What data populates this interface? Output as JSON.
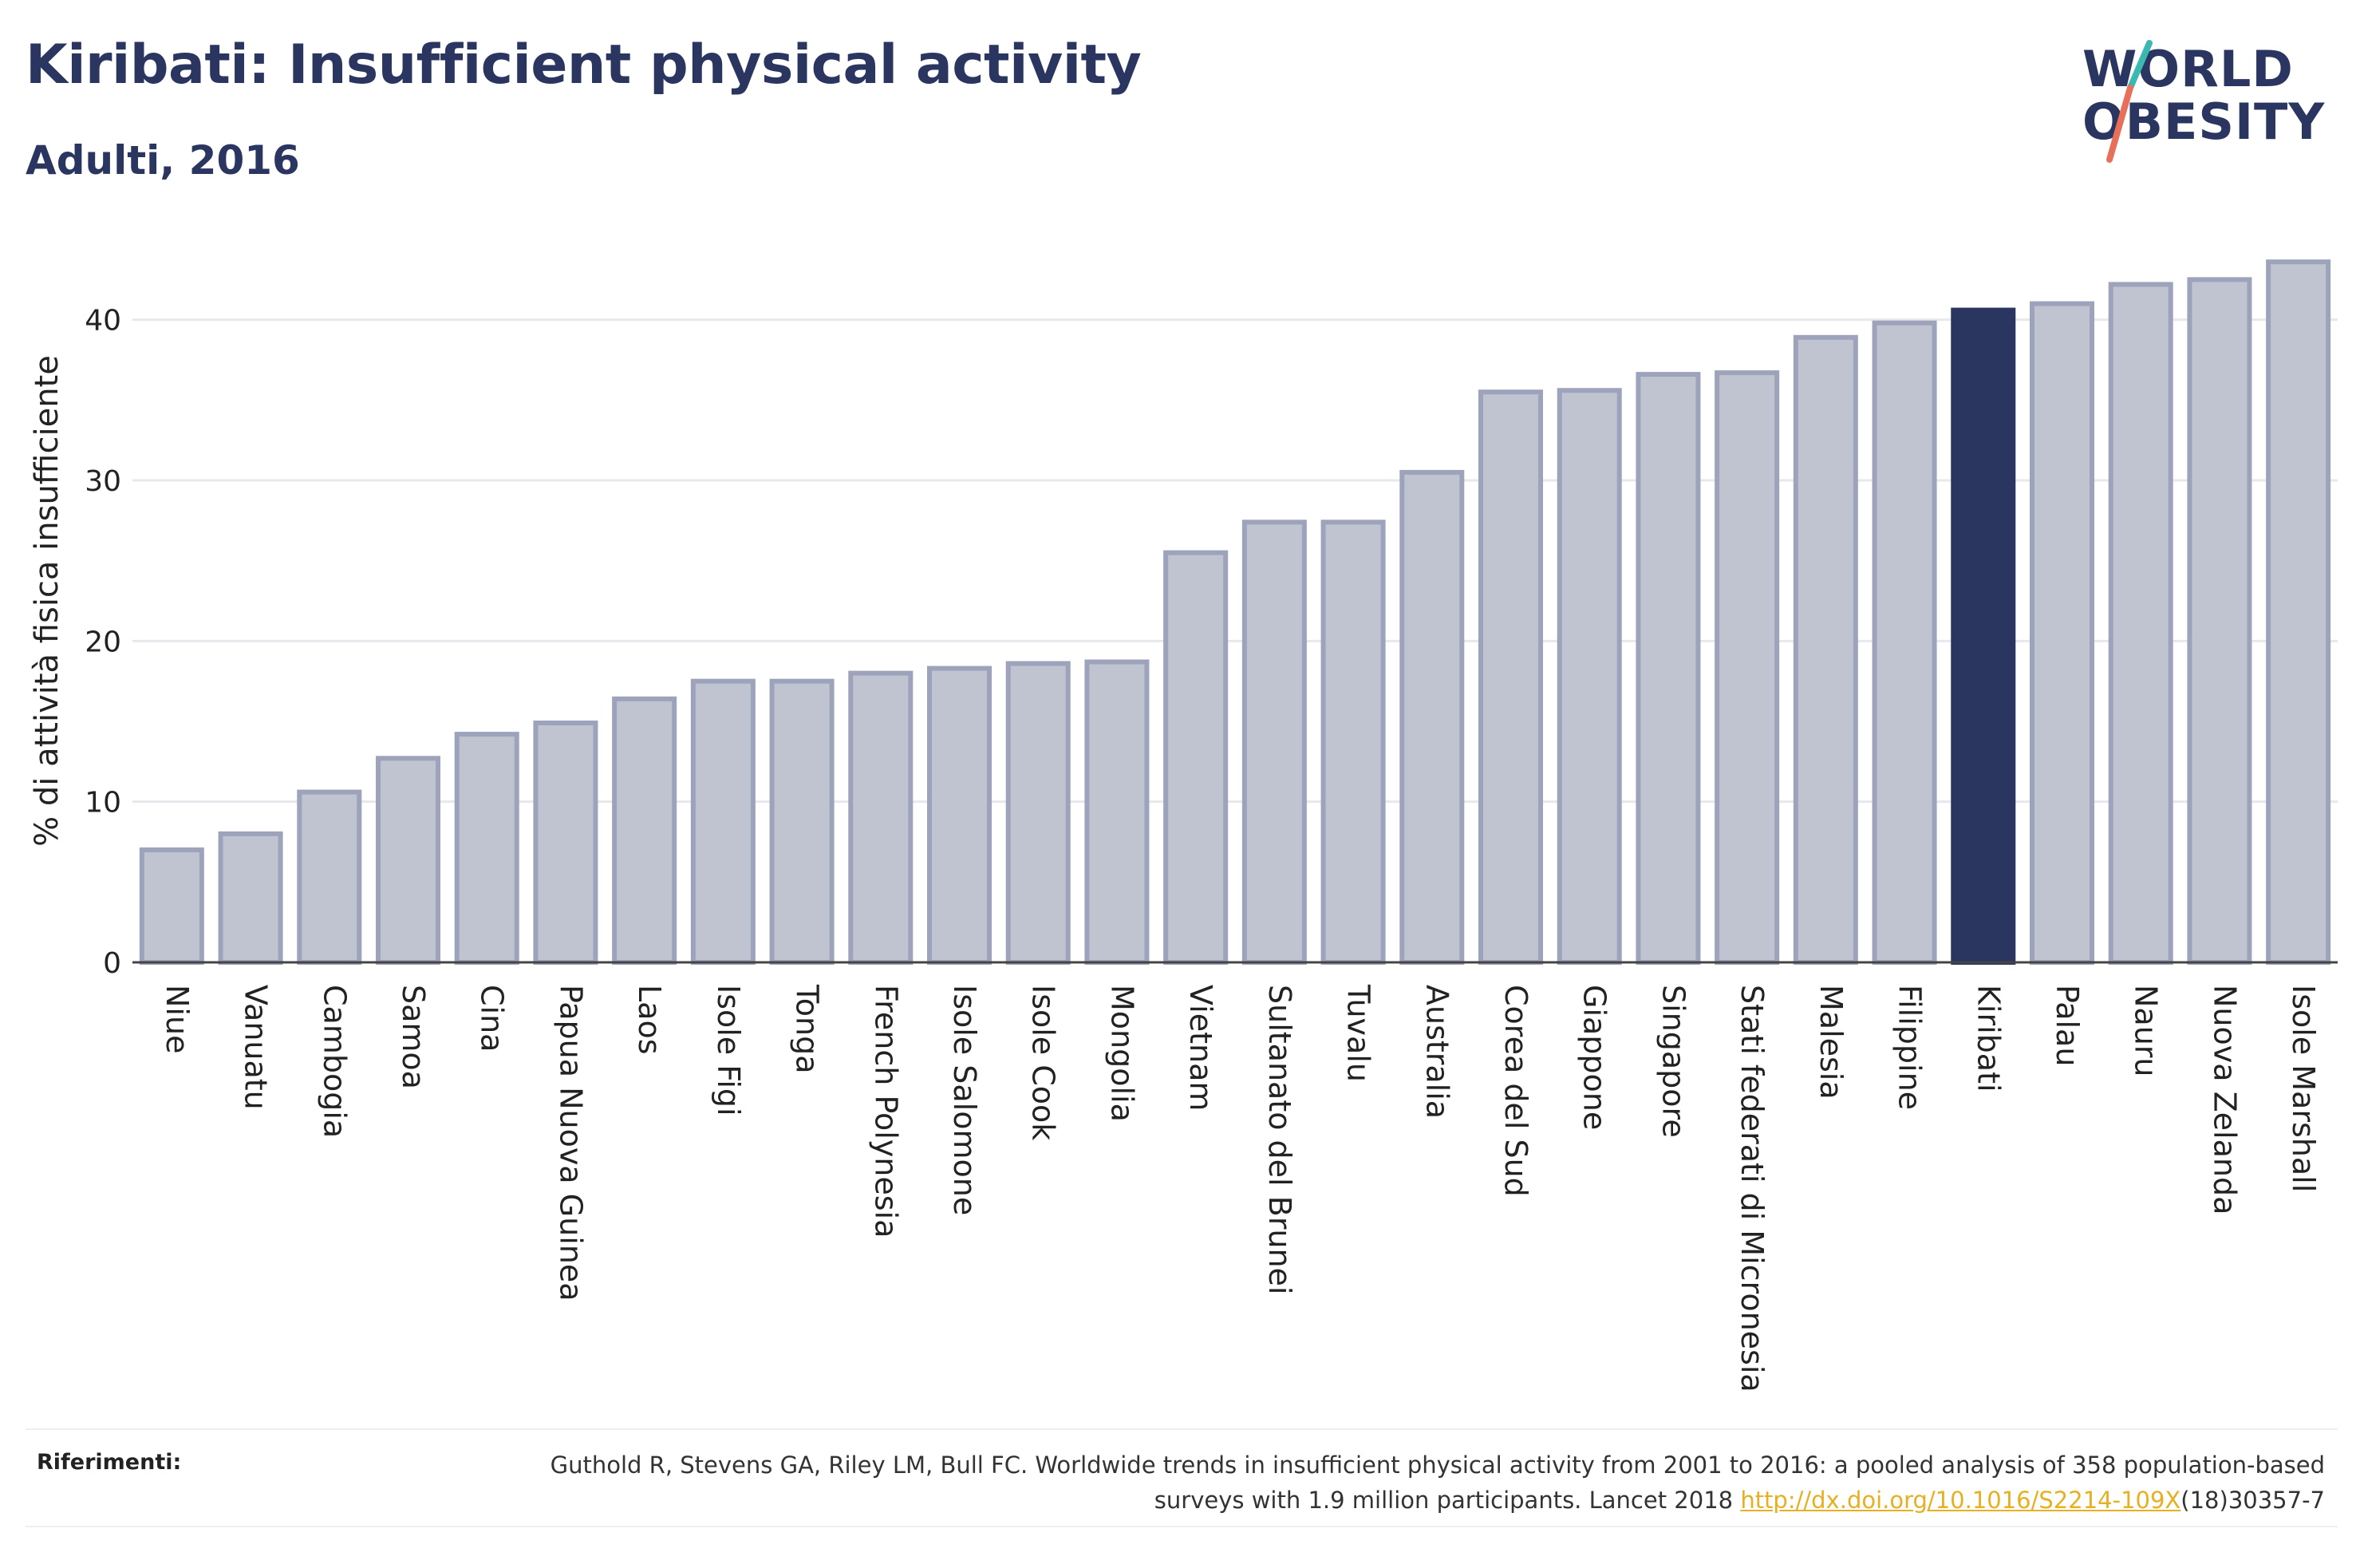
{
  "header": {
    "title": "Kiribati: Insufficient physical activity",
    "subtitle": "Adulti, 2016"
  },
  "logo": {
    "line1": "WORLD",
    "line2": "OBESITY",
    "text_color": "#2a3560",
    "slash_color_top": "#3bb9b0",
    "slash_color_bottom": "#e8705a"
  },
  "chart_data": {
    "type": "bar",
    "ylabel": "% di attività fisica insufficiente",
    "xlabel": "",
    "ylim": [
      0,
      45
    ],
    "yticks": [
      0,
      10,
      20,
      30,
      40
    ],
    "grid": true,
    "highlight": "Kiribati",
    "colors": {
      "bar": "#c0c4d1",
      "bar_border": "#9da3bb",
      "highlight": "#2a3560",
      "grid": "#e6e8ee",
      "axis": "#444444"
    },
    "categories": [
      "Niue",
      "Vanuatu",
      "Cambogia",
      "Samoa",
      "Cina",
      "Papua Nuova Guinea",
      "Laos",
      "Isole Figi",
      "Tonga",
      "French Polynesia",
      "Isole Salomone",
      "Isole Cook",
      "Mongolia",
      "Vietnam",
      "Sultanato del Brunei",
      "Tuvalu",
      "Australia",
      "Corea del Sud",
      "Giappone",
      "Singapore",
      "Stati federati di Micronesia",
      "Malesia",
      "Filippine",
      "Kiribati",
      "Palau",
      "Nauru",
      "Nuova Zelanda",
      "Isole Marshall"
    ],
    "values": [
      7.0,
      8.0,
      10.6,
      12.7,
      14.2,
      14.9,
      16.4,
      17.5,
      17.5,
      18.0,
      18.3,
      18.6,
      18.7,
      25.5,
      27.4,
      27.4,
      30.5,
      35.5,
      35.6,
      36.6,
      36.7,
      38.9,
      39.8,
      40.6,
      41.0,
      42.2,
      42.5,
      43.6
    ]
  },
  "footer": {
    "label": "Riferimenti:",
    "citation_part1": "Guthold R, Stevens GA, Riley LM, Bull FC. Worldwide trends in insufficient physical activity from 2001 to 2016: a pooled analysis of 358 population-based surveys with 1.9 million participants. Lancet 2018 ",
    "citation_link": "http://dx.doi.org/10.1016/S2214-109X",
    "citation_part2": "(18)30357-7"
  }
}
